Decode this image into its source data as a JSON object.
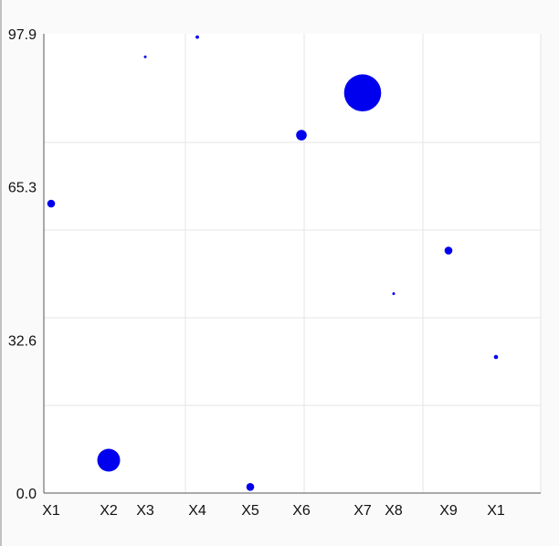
{
  "chart_data": {
    "type": "scatter",
    "title": "",
    "xlabel": "",
    "ylabel": "",
    "grid": true,
    "legend": "none",
    "ylim": [
      0.0,
      97.9
    ],
    "y_ticks": [
      "0.0",
      "32.6",
      "65.3",
      "97.9"
    ],
    "x_tick_labels": [
      "X1",
      "X2",
      "X3",
      "X4",
      "X5",
      "X6",
      "X7",
      "X8",
      "X9",
      "X1"
    ],
    "points": [
      {
        "label": "X1",
        "y": 61.7,
        "size": 3.0
      },
      {
        "label": "X2",
        "y": 7.0,
        "size": 8.6
      },
      {
        "label": "X3",
        "y": 93.0,
        "size": 0.5
      },
      {
        "label": "X4",
        "y": 97.2,
        "size": 1.3
      },
      {
        "label": "X5",
        "y": 1.3,
        "size": 3.0
      },
      {
        "label": "X6",
        "y": 76.3,
        "size": 4.0
      },
      {
        "label": "X7",
        "y": 85.3,
        "size": 14.0
      },
      {
        "label": "X8",
        "y": 42.5,
        "size": 0.3
      },
      {
        "label": "X9",
        "y": 51.7,
        "size": 3.0
      },
      {
        "label": "X1",
        "y": 29.0,
        "size": 1.6
      }
    ],
    "colors": {
      "point": "#0000ee",
      "axis": "#555555",
      "grid": "#e4e4e4",
      "plot_bg": "#ffffff",
      "text": "#111111"
    }
  }
}
